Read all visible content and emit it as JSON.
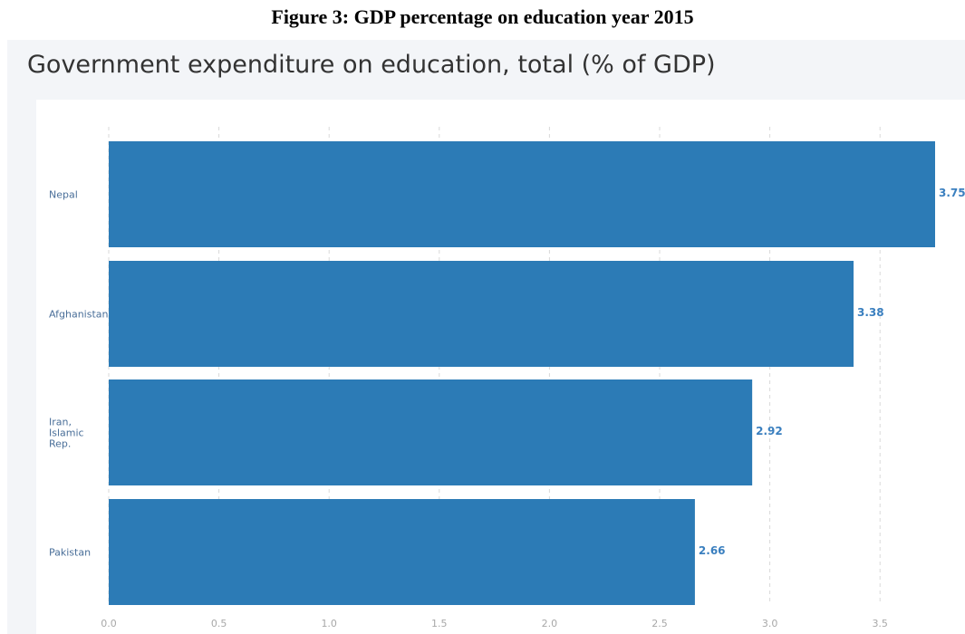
{
  "figure_caption": "Figure 3: GDP percentage on education year 2015",
  "chart_data": {
    "type": "bar",
    "orientation": "horizontal",
    "title": "Government expenditure on education, total (% of GDP)",
    "categories": [
      "Nepal",
      "Afghanistan",
      "Iran, Islamic Rep.",
      "Pakistan"
    ],
    "category_lines": [
      [
        "Nepal"
      ],
      [
        "Afghanistan"
      ],
      [
        "Iran,",
        "Islamic",
        "Rep."
      ],
      [
        "Pakistan"
      ]
    ],
    "values": [
      3.75,
      3.38,
      2.92,
      2.66
    ],
    "value_labels": [
      "3.75",
      "3.38",
      "2.92",
      "2.66"
    ],
    "xlim": [
      0,
      3.75
    ],
    "xticks": [
      "0.0",
      "0.5",
      "1.0",
      "1.5",
      "2.0",
      "2.5",
      "3.0",
      "3.5"
    ],
    "xtick_values": [
      0,
      0.5,
      1.0,
      1.5,
      2.0,
      2.5,
      3.0,
      3.5
    ],
    "grid": "vertical dashed",
    "bar_color": "#2c7bb6"
  }
}
